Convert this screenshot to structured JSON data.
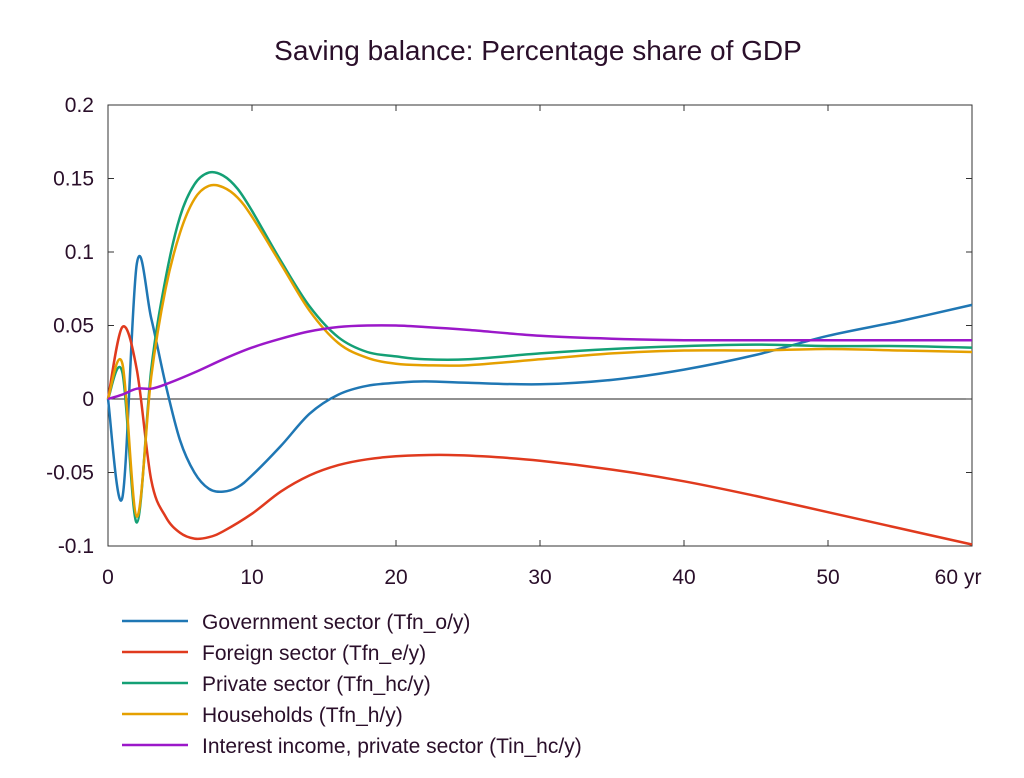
{
  "chart_data": {
    "type": "line",
    "title": "Saving balance: Percentage share of GDP",
    "xlabel": "",
    "ylabel": "",
    "x_unit_label": "yr",
    "xlim": [
      0,
      60
    ],
    "ylim": [
      -0.1,
      0.2
    ],
    "x_ticks": [
      "0",
      "10",
      "20",
      "30",
      "40",
      "50",
      "60"
    ],
    "y_ticks": [
      "0.2",
      "0.15",
      "0.1",
      "0.05",
      "0",
      "-0.05",
      "-0.1"
    ],
    "grid": false,
    "zero_line": true,
    "legend_position": "bottom-left",
    "series": [
      {
        "name": "Government sector (Tfn_o/y)",
        "color": "#1f77b4",
        "points": [
          [
            0,
            0
          ],
          [
            1,
            -0.067
          ],
          [
            2,
            0.092
          ],
          [
            3,
            0.055
          ],
          [
            4,
            0.01
          ],
          [
            5,
            -0.028
          ],
          [
            6,
            -0.05
          ],
          [
            7,
            -0.061
          ],
          [
            8,
            -0.063
          ],
          [
            9,
            -0.06
          ],
          [
            10,
            -0.052
          ],
          [
            12,
            -0.032
          ],
          [
            14,
            -0.01
          ],
          [
            16,
            0.003
          ],
          [
            18,
            0.009
          ],
          [
            20,
            0.011
          ],
          [
            22,
            0.012
          ],
          [
            25,
            0.011
          ],
          [
            30,
            0.01
          ],
          [
            35,
            0.013
          ],
          [
            40,
            0.02
          ],
          [
            45,
            0.03
          ],
          [
            50,
            0.043
          ],
          [
            55,
            0.053
          ],
          [
            60,
            0.064
          ]
        ]
      },
      {
        "name": "Foreign sector (Tfn_e/y)",
        "color": "#e03a1e",
        "points": [
          [
            0,
            0
          ],
          [
            1,
            0.049
          ],
          [
            2,
            0.02
          ],
          [
            3,
            -0.055
          ],
          [
            4,
            -0.08
          ],
          [
            5,
            -0.091
          ],
          [
            6,
            -0.095
          ],
          [
            7,
            -0.094
          ],
          [
            8,
            -0.09
          ],
          [
            10,
            -0.078
          ],
          [
            12,
            -0.063
          ],
          [
            14,
            -0.052
          ],
          [
            16,
            -0.045
          ],
          [
            18,
            -0.041
          ],
          [
            20,
            -0.039
          ],
          [
            23,
            -0.038
          ],
          [
            26,
            -0.039
          ],
          [
            30,
            -0.042
          ],
          [
            35,
            -0.048
          ],
          [
            40,
            -0.056
          ],
          [
            45,
            -0.066
          ],
          [
            50,
            -0.077
          ],
          [
            55,
            -0.088
          ],
          [
            60,
            -0.099
          ]
        ]
      },
      {
        "name": "Private sector (Tfn_hc/y)",
        "color": "#14a075",
        "points": [
          [
            0,
            0
          ],
          [
            1,
            0.018
          ],
          [
            2,
            -0.084
          ],
          [
            3,
            0.02
          ],
          [
            4,
            0.082
          ],
          [
            5,
            0.124
          ],
          [
            6,
            0.146
          ],
          [
            7,
            0.154
          ],
          [
            8,
            0.152
          ],
          [
            9,
            0.143
          ],
          [
            10,
            0.128
          ],
          [
            12,
            0.094
          ],
          [
            14,
            0.063
          ],
          [
            16,
            0.042
          ],
          [
            18,
            0.032
          ],
          [
            20,
            0.029
          ],
          [
            22,
            0.027
          ],
          [
            25,
            0.027
          ],
          [
            30,
            0.031
          ],
          [
            35,
            0.034
          ],
          [
            40,
            0.036
          ],
          [
            45,
            0.037
          ],
          [
            50,
            0.036
          ],
          [
            55,
            0.036
          ],
          [
            60,
            0.035
          ]
        ]
      },
      {
        "name": "Households (Tfn_h/y)",
        "color": "#e5a000",
        "points": [
          [
            0,
            0
          ],
          [
            1,
            0.024
          ],
          [
            2,
            -0.08
          ],
          [
            3,
            0.015
          ],
          [
            4,
            0.075
          ],
          [
            5,
            0.113
          ],
          [
            6,
            0.136
          ],
          [
            7,
            0.145
          ],
          [
            8,
            0.144
          ],
          [
            9,
            0.137
          ],
          [
            10,
            0.124
          ],
          [
            12,
            0.092
          ],
          [
            14,
            0.06
          ],
          [
            16,
            0.038
          ],
          [
            18,
            0.028
          ],
          [
            20,
            0.024
          ],
          [
            22,
            0.023
          ],
          [
            25,
            0.023
          ],
          [
            30,
            0.027
          ],
          [
            35,
            0.031
          ],
          [
            40,
            0.033
          ],
          [
            45,
            0.033
          ],
          [
            50,
            0.034
          ],
          [
            55,
            0.033
          ],
          [
            60,
            0.032
          ]
        ]
      },
      {
        "name": "Interest income, private sector (Tin_hc/y)",
        "color": "#9b18c9",
        "points": [
          [
            0,
            0
          ],
          [
            1,
            0.003
          ],
          [
            2,
            0.007
          ],
          [
            3,
            0.007
          ],
          [
            4,
            0.01
          ],
          [
            6,
            0.018
          ],
          [
            8,
            0.027
          ],
          [
            10,
            0.035
          ],
          [
            12,
            0.041
          ],
          [
            14,
            0.046
          ],
          [
            16,
            0.049
          ],
          [
            18,
            0.05
          ],
          [
            20,
            0.05
          ],
          [
            22,
            0.049
          ],
          [
            25,
            0.047
          ],
          [
            30,
            0.043
          ],
          [
            35,
            0.041
          ],
          [
            40,
            0.04
          ],
          [
            45,
            0.04
          ],
          [
            50,
            0.04
          ],
          [
            55,
            0.04
          ],
          [
            60,
            0.04
          ]
        ]
      }
    ]
  },
  "colors": {
    "text": "#2a0f2a",
    "axis": "#333333",
    "background": "#ffffff"
  }
}
